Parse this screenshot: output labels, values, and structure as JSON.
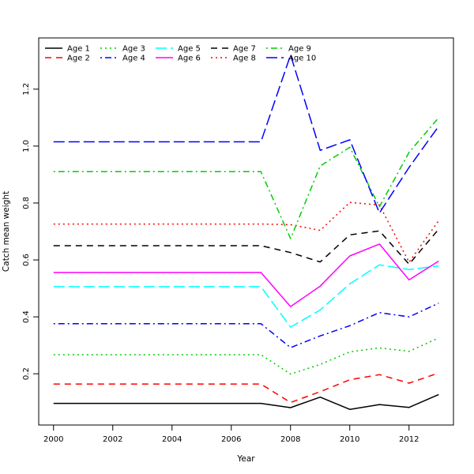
{
  "chart_data": {
    "type": "line",
    "title": "",
    "xlabel": "Year",
    "ylabel": "Catch mean weight",
    "xlim": [
      1999.5,
      2013.5
    ],
    "ylim": [
      0.02,
      1.38
    ],
    "x_ticks": [
      2000,
      2002,
      2004,
      2006,
      2008,
      2010,
      2012
    ],
    "x_tick_labels": [
      "2000",
      "2002",
      "2004",
      "2006",
      "2008",
      "2010",
      "2012"
    ],
    "y_ticks": [
      0.2,
      0.4,
      0.6,
      0.8,
      1.0,
      1.2
    ],
    "y_tick_labels": [
      "0.2",
      "0.4",
      "0.6",
      "0.8",
      "1.0",
      "1.2"
    ],
    "grid": false,
    "legend_position": "top-left",
    "x": [
      2000,
      2001,
      2002,
      2003,
      2004,
      2005,
      2006,
      2007,
      2008,
      2009,
      2010,
      2011,
      2012,
      2013
    ],
    "series": [
      {
        "name": "Age 1",
        "color": "#000000",
        "dash": "solid",
        "values": [
          0.096,
          0.096,
          0.096,
          0.096,
          0.096,
          0.096,
          0.096,
          0.096,
          0.081,
          0.118,
          0.075,
          0.092,
          0.082,
          0.127
        ]
      },
      {
        "name": "Age 2",
        "color": "#ff0000",
        "dash": "dashed",
        "values": [
          0.164,
          0.164,
          0.164,
          0.164,
          0.164,
          0.164,
          0.164,
          0.164,
          0.099,
          0.137,
          0.179,
          0.197,
          0.167,
          0.203
        ]
      },
      {
        "name": "Age 3",
        "color": "#00cd00",
        "dash": "dotted",
        "values": [
          0.267,
          0.267,
          0.267,
          0.267,
          0.267,
          0.267,
          0.267,
          0.267,
          0.199,
          0.233,
          0.277,
          0.291,
          0.279,
          0.326
        ]
      },
      {
        "name": "Age 4",
        "color": "#0000ff",
        "dash": "dotdash",
        "values": [
          0.376,
          0.376,
          0.376,
          0.376,
          0.376,
          0.376,
          0.376,
          0.376,
          0.292,
          0.333,
          0.369,
          0.415,
          0.4,
          0.448
        ]
      },
      {
        "name": "Age 5",
        "color": "#00ffff",
        "dash": "longdash",
        "values": [
          0.506,
          0.506,
          0.506,
          0.506,
          0.506,
          0.506,
          0.506,
          0.506,
          0.364,
          0.424,
          0.516,
          0.583,
          0.566,
          0.579
        ]
      },
      {
        "name": "Age 6",
        "color": "#ff00ff",
        "dash": "solid",
        "values": [
          0.556,
          0.556,
          0.556,
          0.556,
          0.556,
          0.556,
          0.556,
          0.556,
          0.436,
          0.508,
          0.614,
          0.656,
          0.53,
          0.596
        ]
      },
      {
        "name": "Age 7",
        "color": "#000000",
        "dash": "dashed",
        "values": [
          0.65,
          0.65,
          0.65,
          0.65,
          0.65,
          0.65,
          0.65,
          0.65,
          0.626,
          0.593,
          0.688,
          0.702,
          0.585,
          0.708
        ]
      },
      {
        "name": "Age 8",
        "color": "#ff0000",
        "dash": "dotted",
        "values": [
          0.726,
          0.726,
          0.726,
          0.726,
          0.726,
          0.726,
          0.726,
          0.726,
          0.724,
          0.704,
          0.802,
          0.793,
          0.592,
          0.738
        ]
      },
      {
        "name": "Age 9",
        "color": "#00cd00",
        "dash": "dotdash",
        "values": [
          0.91,
          0.91,
          0.91,
          0.91,
          0.91,
          0.91,
          0.91,
          0.91,
          0.675,
          0.93,
          0.996,
          0.787,
          0.978,
          1.1
        ]
      },
      {
        "name": "Age 10",
        "color": "#0000ff",
        "dash": "longdash",
        "values": [
          1.015,
          1.015,
          1.015,
          1.015,
          1.015,
          1.015,
          1.015,
          1.015,
          1.32,
          0.985,
          1.022,
          0.765,
          0.925,
          1.07
        ]
      }
    ]
  }
}
